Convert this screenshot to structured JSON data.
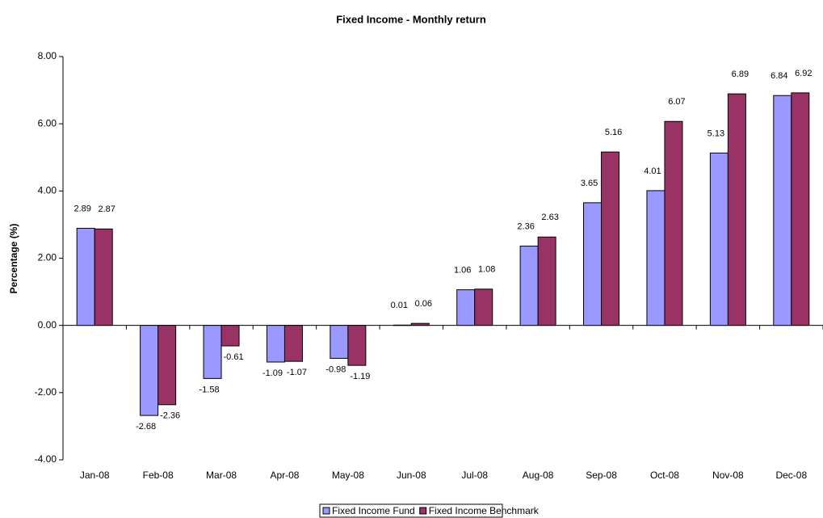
{
  "chart_data": {
    "type": "bar",
    "title": "Fixed Income - Monthly return",
    "y_label": "Percentage (%)",
    "categories": [
      "Jan-08",
      "Feb-08",
      "Mar-08",
      "Apr-08",
      "May-08",
      "Jun-08",
      "Jul-08",
      "Aug-08",
      "Sep-08",
      "Oct-08",
      "Nov-08",
      "Dec-08"
    ],
    "series": [
      {
        "name": "Fixed Income Fund",
        "color": "#9999ff",
        "values": [
          2.89,
          -2.68,
          -1.58,
          -1.09,
          -0.98,
          0.01,
          1.06,
          2.36,
          3.65,
          4.01,
          5.13,
          6.84
        ]
      },
      {
        "name": "Fixed Income Benchmark",
        "color": "#993366",
        "values": [
          2.87,
          -2.36,
          -0.61,
          -1.07,
          -1.19,
          0.06,
          1.08,
          2.63,
          5.16,
          6.07,
          6.89,
          6.92
        ]
      }
    ],
    "ylim": [
      -4,
      8
    ],
    "yticks": [
      {
        "value": -4,
        "label": "-4.00"
      },
      {
        "value": -2,
        "label": "-2.00"
      },
      {
        "value": 0,
        "label": "0.00"
      },
      {
        "value": 2,
        "label": "2.00"
      },
      {
        "value": 4,
        "label": "4.00"
      },
      {
        "value": 6,
        "label": "6.00"
      },
      {
        "value": 8,
        "label": "8.00"
      }
    ],
    "legend": "bottom"
  }
}
